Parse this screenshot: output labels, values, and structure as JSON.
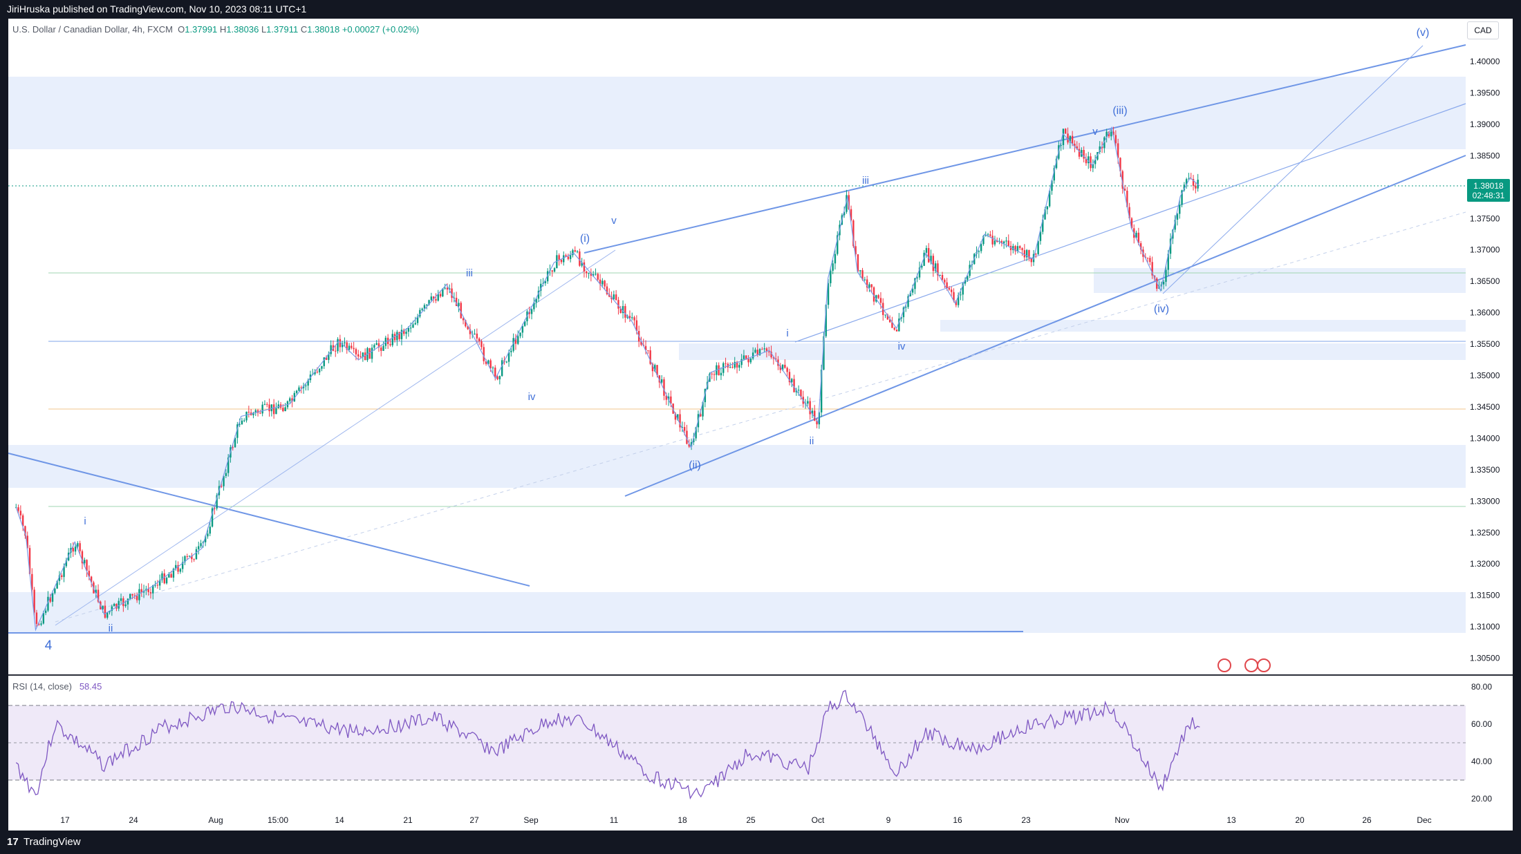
{
  "header": {
    "published": "JiriHruska published on TradingView.com, Nov 10, 2023 08:11 UTC+1"
  },
  "footer": {
    "brand": "TradingView",
    "logo_glyph": "17"
  },
  "symbol": {
    "name": "U.S. Dollar / Canadian Dollar, 4h, FXCM",
    "open_label": "O",
    "open": "1.37991",
    "high_label": "H",
    "high": "1.38036",
    "low_label": "L",
    "low": "1.37911",
    "close_label": "C",
    "close": "1.38018",
    "change": "+0.00027 (+0.02%)",
    "currency": "CAD"
  },
  "last_price": {
    "value": "1.38018",
    "countdown": "02:48:31"
  },
  "rsi": {
    "label": "RSI (14, close)",
    "value": "58.45",
    "ticks": [
      "80.00",
      "60.00",
      "40.00",
      "20.00"
    ],
    "band_upper": 70,
    "band_lower": 30,
    "middle": 50
  },
  "colors": {
    "up": "#089981",
    "down": "#f23645",
    "wave": "#5b86e5",
    "zone": "#e3ecfb",
    "rsi_line": "#7e57c2",
    "rsi_band": "#ede7f6",
    "background": "#ffffff"
  },
  "chart_data": {
    "type": "candlestick",
    "instrument": "USD/CAD",
    "timeframe": "4h",
    "price_ticks": [
      "1.40000",
      "1.39500",
      "1.39000",
      "1.38500",
      "1.37500",
      "1.37000",
      "1.36500",
      "1.36000",
      "1.35500",
      "1.35000",
      "1.34500",
      "1.34000",
      "1.33500",
      "1.33000",
      "1.32500",
      "1.32000",
      "1.31500",
      "1.31000",
      "1.30500"
    ],
    "y_range": [
      1.3015,
      1.4045
    ],
    "x_ticks": [
      "17",
      "24",
      "Aug",
      "15:00",
      "14",
      "21",
      "27",
      "Sep",
      "11",
      "18",
      "25",
      "Oct",
      "9",
      "16",
      "23",
      "Nov",
      "13",
      "20",
      "26",
      "Dec"
    ],
    "path_points": [
      {
        "x": "Jul 12",
        "y": 1.329
      },
      {
        "x": "Jul 13",
        "y": 1.3245
      },
      {
        "x": "Jul 14",
        "y": 1.3095
      },
      {
        "x": "Jul 18",
        "y": 1.3235
      },
      {
        "x": "Jul 21",
        "y": 1.312
      },
      {
        "x": "Jul 26",
        "y": 1.3165
      },
      {
        "x": "Jul 31",
        "y": 1.3225
      },
      {
        "x": "Aug 4",
        "y": 1.3435
      },
      {
        "x": "Aug 9",
        "y": 1.3455
      },
      {
        "x": "Aug 14",
        "y": 1.3555
      },
      {
        "x": "Aug 16",
        "y": 1.3525
      },
      {
        "x": "Aug 21",
        "y": 1.3575
      },
      {
        "x": "Aug 25",
        "y": 1.3645
      },
      {
        "x": "Aug 30",
        "y": 1.3495
      },
      {
        "x": "Sep 5",
        "y": 1.368
      },
      {
        "x": "Sep 7",
        "y": 1.3695
      },
      {
        "x": "Sep 13",
        "y": 1.3585
      },
      {
        "x": "Sep 19",
        "y": 1.3385
      },
      {
        "x": "Sep 21",
        "y": 1.3505
      },
      {
        "x": "Sep 27",
        "y": 1.354
      },
      {
        "x": "Oct 2",
        "y": 1.3425
      },
      {
        "x": "Oct 3",
        "y": 1.3655
      },
      {
        "x": "Oct 5",
        "y": 1.3785
      },
      {
        "x": "Oct 6",
        "y": 1.3665
      },
      {
        "x": "Oct 10",
        "y": 1.3575
      },
      {
        "x": "Oct 13",
        "y": 1.3695
      },
      {
        "x": "Oct 16",
        "y": 1.3615
      },
      {
        "x": "Oct 19",
        "y": 1.3725
      },
      {
        "x": "Oct 24",
        "y": 1.3685
      },
      {
        "x": "Oct 27",
        "y": 1.3885
      },
      {
        "x": "Oct 30",
        "y": 1.3835
      },
      {
        "x": "Nov 1",
        "y": 1.3895
      },
      {
        "x": "Nov 3",
        "y": 1.3735
      },
      {
        "x": "Nov 6",
        "y": 1.3635
      },
      {
        "x": "Nov 8",
        "y": 1.3785
      },
      {
        "x": "Nov 9",
        "y": 1.3815
      },
      {
        "x": "Nov 10",
        "y": 1.38018
      }
    ],
    "wave_labels": [
      "4",
      "i",
      "ii",
      "iii",
      "iv",
      "v",
      "(i)",
      "(ii)",
      "i",
      "ii",
      "iii",
      "iv",
      "v",
      "(iii)",
      "(iv)",
      "(v)"
    ],
    "rsi_points": [
      {
        "x": "Jul 12",
        "y": 38
      },
      {
        "x": "Jul 14",
        "y": 22
      },
      {
        "x": "Jul 16",
        "y": 60
      },
      {
        "x": "Jul 21",
        "y": 38
      },
      {
        "x": "Jul 27",
        "y": 58
      },
      {
        "x": "Aug 3",
        "y": 70
      },
      {
        "x": "Aug 10",
        "y": 60
      },
      {
        "x": "Aug 16",
        "y": 56
      },
      {
        "x": "Aug 24",
        "y": 63
      },
      {
        "x": "Aug 30",
        "y": 45
      },
      {
        "x": "Sep 5",
        "y": 63
      },
      {
        "x": "Sep 8",
        "y": 61
      },
      {
        "x": "Sep 15",
        "y": 32
      },
      {
        "x": "Sep 20",
        "y": 22
      },
      {
        "x": "Sep 25",
        "y": 45
      },
      {
        "x": "Oct 1",
        "y": 36
      },
      {
        "x": "Oct 3",
        "y": 68
      },
      {
        "x": "Oct 5",
        "y": 75
      },
      {
        "x": "Oct 10",
        "y": 34
      },
      {
        "x": "Oct 13",
        "y": 55
      },
      {
        "x": "Oct 18",
        "y": 47
      },
      {
        "x": "Oct 23",
        "y": 58
      },
      {
        "x": "Oct 30",
        "y": 66
      },
      {
        "x": "Nov 1",
        "y": 69
      },
      {
        "x": "Nov 6",
        "y": 25
      },
      {
        "x": "Nov 9",
        "y": 61
      },
      {
        "x": "Nov 10",
        "y": 58.45
      }
    ]
  }
}
